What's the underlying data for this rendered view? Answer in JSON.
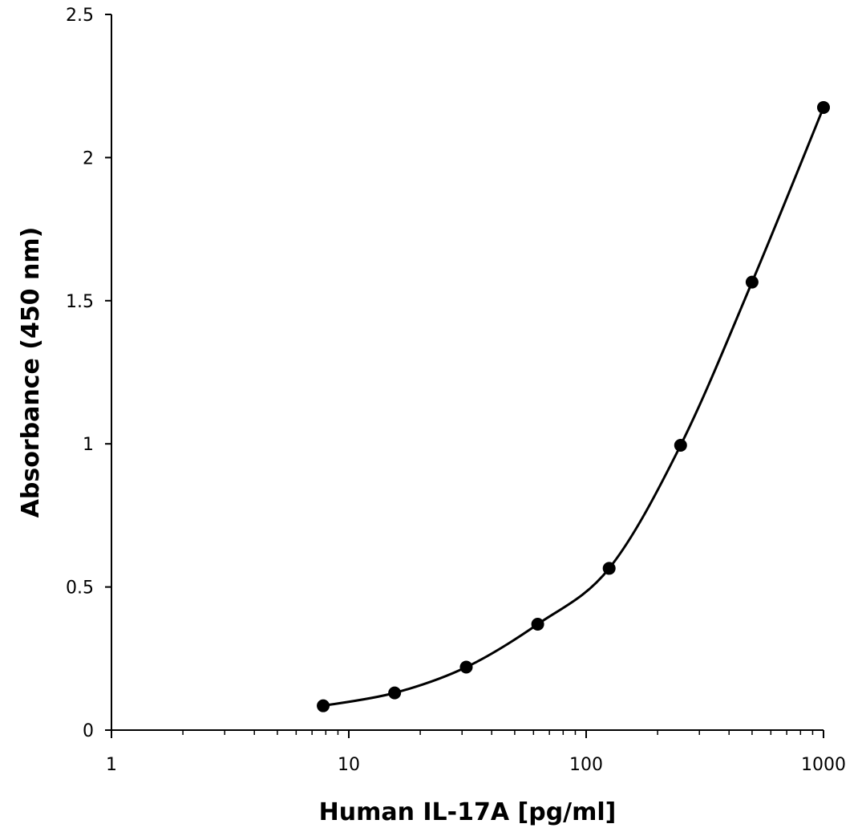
{
  "chart_data": {
    "type": "line",
    "title": "",
    "xlabel": "Human IL-17A [pg/ml]",
    "ylabel": "Absorbance (450 nm)",
    "xscale": "log",
    "xlim": [
      1,
      1000
    ],
    "ylim": [
      0,
      2.5
    ],
    "x_ticks": [
      "1",
      "10",
      "100",
      "1000"
    ],
    "y_ticks": [
      "0",
      "0.5",
      "1",
      "1.5",
      "2",
      "2.5"
    ],
    "grid": false,
    "legend": "none",
    "line_color": "#000000",
    "series": [
      {
        "x": [
          7.8,
          15.6,
          31.25,
          62.5,
          125,
          250,
          500,
          1000
        ],
        "y": [
          0.085,
          0.13,
          0.22,
          0.37,
          0.565,
          0.995,
          1.565,
          2.175
        ]
      }
    ]
  }
}
